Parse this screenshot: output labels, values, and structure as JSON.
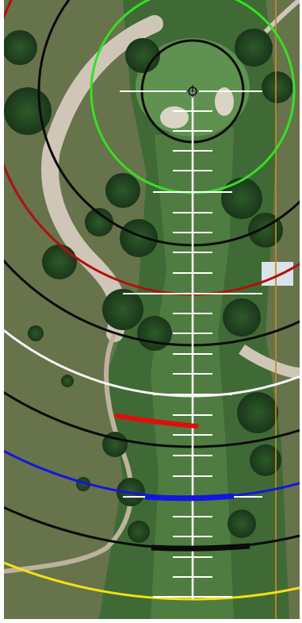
{
  "screen": {
    "title": "",
    "view": "hole-flyover"
  },
  "colors": {
    "fairway": "#4f7c40",
    "rough": "#3f6a35",
    "green": "#5f9150",
    "bunker": "#d9d4c4",
    "cart_path": "#cfc6b8",
    "sand_trail": "#bdb39c",
    "trees": "#1f3f1f",
    "scrub": "#6e7a4e",
    "water_line": "#c48a28",
    "green_ring": "#35e024",
    "yardage_white": "#ffffff",
    "arc_black": "#0b0b0b",
    "arc_red": "#b20f0f",
    "arc_white": "#f4f4f4",
    "arc_blue": "#1515e0",
    "arc_yellow": "#f2e017",
    "shot_marker_red": "#e00d0d"
  },
  "icons": {
    "pin_target": "crosshair-icon"
  },
  "overlay": {
    "center_line": "white-yardage-line",
    "range_rings": [
      "green-ring",
      "black-ring-inner",
      "black-ring-outer"
    ],
    "range_arcs": [
      "black",
      "red",
      "black",
      "white",
      "black",
      "blue",
      "black",
      "yellow"
    ],
    "markers": [
      "red-shot-bar",
      "blue-shot-bar",
      "black-shot-bar"
    ]
  }
}
